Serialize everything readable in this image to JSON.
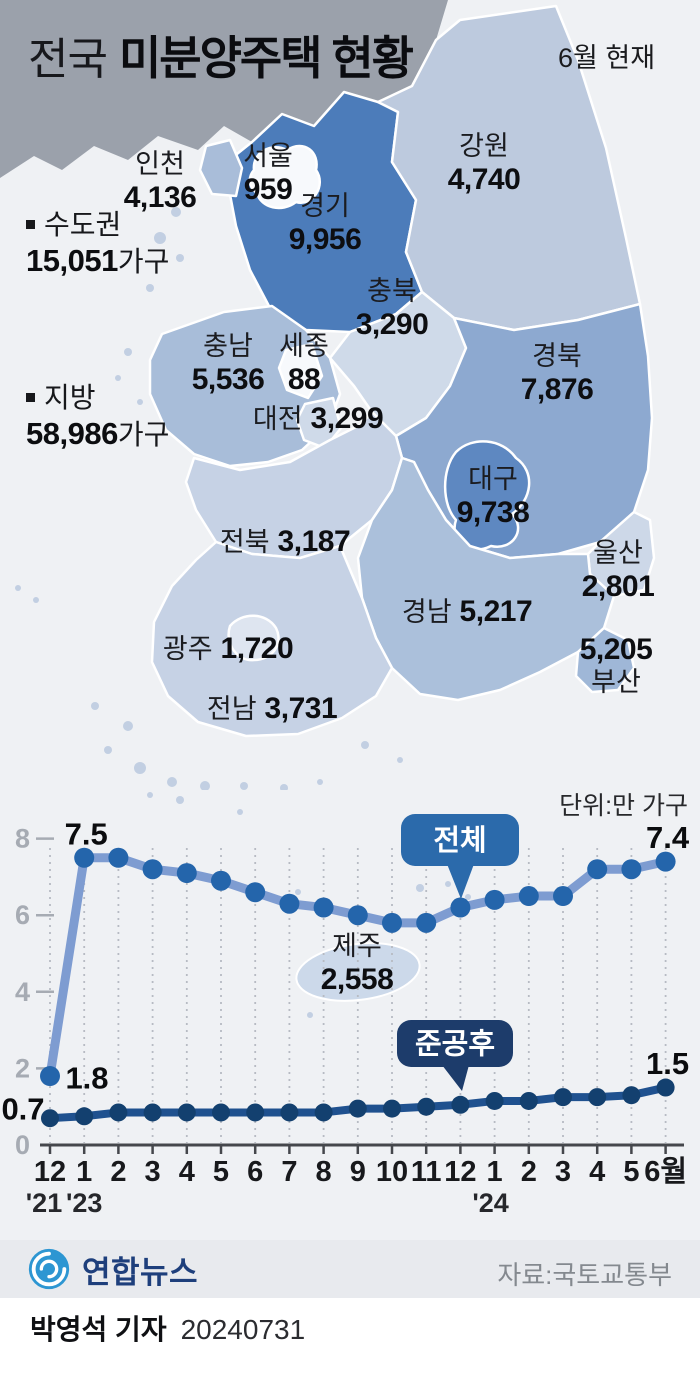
{
  "title": {
    "prefix": "전국",
    "main": "미분양주택 현황",
    "as_of": "6월 현재"
  },
  "summary": [
    {
      "id": "sudogwon",
      "label": "수도권",
      "value": "15,051",
      "unit": "가구"
    },
    {
      "id": "jibang",
      "label": "지방",
      "value": "58,986",
      "unit": "가구"
    }
  ],
  "map_regions": [
    {
      "id": "incheon",
      "name": "인천",
      "value": "4,136",
      "layout": "stack",
      "fill": "#a9bdd9"
    },
    {
      "id": "seoul",
      "name": "서울",
      "value": "959",
      "layout": "stack",
      "fill": "#f7f9fc"
    },
    {
      "id": "gyeonggi",
      "name": "경기",
      "value": "9,956",
      "layout": "stack",
      "fill": "#4c7cba"
    },
    {
      "id": "gangwon",
      "name": "강원",
      "value": "4,740",
      "layout": "stack",
      "fill": "#bdcade"
    },
    {
      "id": "chungbuk",
      "name": "충북",
      "value": "3,290",
      "layout": "stack",
      "fill": "#cfdae9"
    },
    {
      "id": "chungnam",
      "name": "충남",
      "value": "5,536",
      "layout": "stack",
      "fill": "#a8bdd9"
    },
    {
      "id": "sejong",
      "name": "세종",
      "value": "88",
      "layout": "stack",
      "fill": "#f7f9fc"
    },
    {
      "id": "daejeon",
      "name": "대전",
      "value": "3,299",
      "layout": "inline",
      "fill": "#cfdae9"
    },
    {
      "id": "gyeongbuk",
      "name": "경북",
      "value": "7,876",
      "layout": "stack",
      "fill": "#8da9d0"
    },
    {
      "id": "daegu",
      "name": "대구",
      "value": "9,738",
      "layout": "stack",
      "fill": "#5e88c1"
    },
    {
      "id": "jeonbuk",
      "name": "전북",
      "value": "3,187",
      "layout": "inline",
      "fill": "#c6d2e5"
    },
    {
      "id": "ulsan",
      "name": "울산",
      "value": "2,801",
      "layout": "stack",
      "fill": "#cdd8e8"
    },
    {
      "id": "gyeongnam",
      "name": "경남",
      "value": "5,217",
      "layout": "inline",
      "fill": "#abc0db"
    },
    {
      "id": "gwangju",
      "name": "광주",
      "value": "1,720",
      "layout": "inline",
      "fill": "#dee5f0"
    },
    {
      "id": "busan",
      "name": "부산",
      "value": "5,205",
      "layout": "stack-value-first",
      "fill": "#9fb7d7"
    },
    {
      "id": "jeonnam",
      "name": "전남",
      "value": "3,731",
      "layout": "inline",
      "fill": "#c6d2e5"
    },
    {
      "id": "jeju",
      "name": "제주",
      "value": "2,558",
      "layout": "stack",
      "fill": "#ccd9ea"
    }
  ],
  "chart_data": {
    "type": "line",
    "unit_label": "단위:만 가구",
    "x_labels": [
      "12",
      "1",
      "2",
      "3",
      "4",
      "5",
      "6",
      "7",
      "8",
      "9",
      "10",
      "11",
      "12",
      "1",
      "2",
      "3",
      "4",
      "5",
      "6월"
    ],
    "year_labels": [
      {
        "text": "'21",
        "index": 0
      },
      {
        "text": "'23",
        "index": 1
      },
      {
        "text": "'24",
        "index": 13
      }
    ],
    "yticks": [
      0,
      2,
      4,
      6,
      8
    ],
    "ylim": [
      0,
      8.5
    ],
    "grid": "vertical-dotted",
    "series": [
      {
        "name": "전체",
        "values": [
          1.8,
          7.5,
          7.5,
          7.2,
          7.1,
          6.9,
          6.6,
          6.3,
          6.2,
          6.0,
          5.8,
          5.8,
          6.2,
          6.4,
          6.5,
          6.5,
          7.2,
          7.2,
          7.4
        ],
        "line_color": "#7e9cd1",
        "dot_color": "#2465ab"
      },
      {
        "name": "준공후",
        "values": [
          0.7,
          0.75,
          0.85,
          0.85,
          0.85,
          0.85,
          0.85,
          0.85,
          0.85,
          0.95,
          0.95,
          1.0,
          1.05,
          1.15,
          1.15,
          1.25,
          1.25,
          1.3,
          1.5
        ],
        "line_color": "#1f518f",
        "dot_color": "#13406f"
      }
    ],
    "point_labels": [
      {
        "series": 0,
        "index": 1,
        "text": "7.5",
        "placement": "above"
      },
      {
        "series": 0,
        "index": 18,
        "text": "7.4",
        "placement": "above"
      },
      {
        "series": 0,
        "index": 0,
        "text": "1.8",
        "placement": "right"
      },
      {
        "series": 1,
        "index": 0,
        "text": "0.7",
        "placement": "left"
      },
      {
        "series": 1,
        "index": 18,
        "text": "1.5",
        "placement": "above"
      }
    ],
    "callouts": [
      {
        "text": "전체",
        "color": "#2b6aab"
      },
      {
        "text": "준공후",
        "color": "#1d3c6b"
      }
    ]
  },
  "footer": {
    "logo_text": "연합뉴스",
    "source": "자료:국토교통부",
    "byline_name": "박영석 기자",
    "byline_date": "20240731"
  },
  "colors": {
    "background": "#eff1f4",
    "footer_band": "#e8eaee",
    "north_korea": "#9ba1ab",
    "map_stroke": "#ffffff",
    "axis": "#45474c",
    "gridline": "#b7bbc3",
    "ytick_text": "#a6abb3"
  }
}
